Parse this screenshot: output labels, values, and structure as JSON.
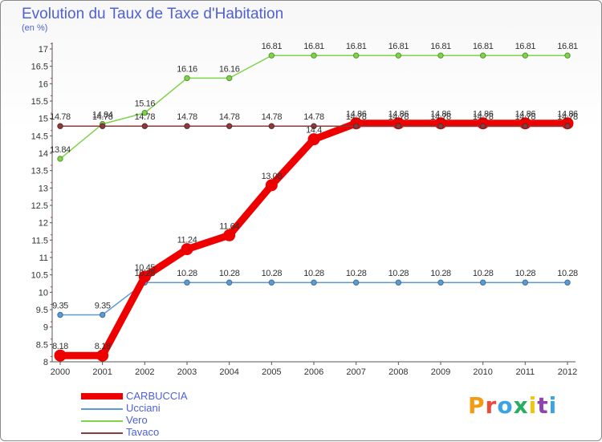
{
  "title": "Evolution du Taux de Taxe d'Habitation",
  "unit_label": "(en %)",
  "logo_text": "Proxiti",
  "chart_data": {
    "type": "line",
    "title": "Evolution du Taux de Taxe d'Habitation",
    "ylabel": "(en %)",
    "xlabel": "",
    "x": [
      "2000",
      "2001",
      "2002",
      "2003",
      "2004",
      "2005",
      "2006",
      "2007",
      "2008",
      "2009",
      "2010",
      "2011",
      "2012"
    ],
    "ylim": [
      8,
      17
    ],
    "yticks": [
      8,
      8.5,
      9,
      9.5,
      10,
      10.5,
      11,
      11.5,
      12,
      12.5,
      13,
      13.5,
      14,
      14.5,
      15,
      15.5,
      16,
      16.5,
      17
    ],
    "grid": false,
    "legend_position": "bottom-left",
    "series": [
      {
        "name": "CARBUCCIA",
        "color": "#ee0000",
        "values": [
          8.18,
          8.18,
          10.45,
          11.24,
          11.64,
          13.08,
          14.4,
          14.86,
          14.86,
          14.86,
          14.86,
          14.86,
          14.86
        ],
        "labels": [
          "8.18",
          "8.18",
          "10.45",
          "11.24",
          "11.64",
          "13.08",
          "14.4",
          "14.86",
          "14.86",
          "14.86",
          "14.86",
          "14.86",
          "14.86"
        ]
      },
      {
        "name": "Ucciani",
        "color": "#5b9bd5",
        "values": [
          9.35,
          9.35,
          10.28,
          10.28,
          10.28,
          10.28,
          10.28,
          10.28,
          10.28,
          10.28,
          10.28,
          10.28,
          10.28
        ],
        "labels": [
          "9.35",
          "9.35",
          "10.28",
          "10.28",
          "10.28",
          "10.28",
          "10.28",
          "10.28",
          "10.28",
          "10.28",
          "10.28",
          "10.28",
          "10.28"
        ]
      },
      {
        "name": "Vero",
        "color": "#7ed348",
        "values": [
          13.84,
          14.84,
          15.16,
          16.16,
          16.16,
          16.81,
          16.81,
          16.81,
          16.81,
          16.81,
          16.81,
          16.81,
          16.81
        ],
        "labels": [
          "13.84",
          "14.84",
          "15.16",
          "16.16",
          "16.16",
          "16.81",
          "16.81",
          "16.81",
          "16.81",
          "16.81",
          "16.81",
          "16.81",
          "16.81"
        ]
      },
      {
        "name": "Tavaco",
        "color": "#8b3a3a",
        "values": [
          14.78,
          14.78,
          14.78,
          14.78,
          14.78,
          14.78,
          14.78,
          14.78,
          14.78,
          14.78,
          14.78,
          14.78,
          14.78
        ],
        "labels": [
          "14.78",
          "14.78",
          "14.78",
          "14.78",
          "14.78",
          "14.78",
          "14.78",
          "14.78",
          "14.78",
          "14.78",
          "14.78",
          "14.78",
          "14.78"
        ]
      }
    ]
  }
}
